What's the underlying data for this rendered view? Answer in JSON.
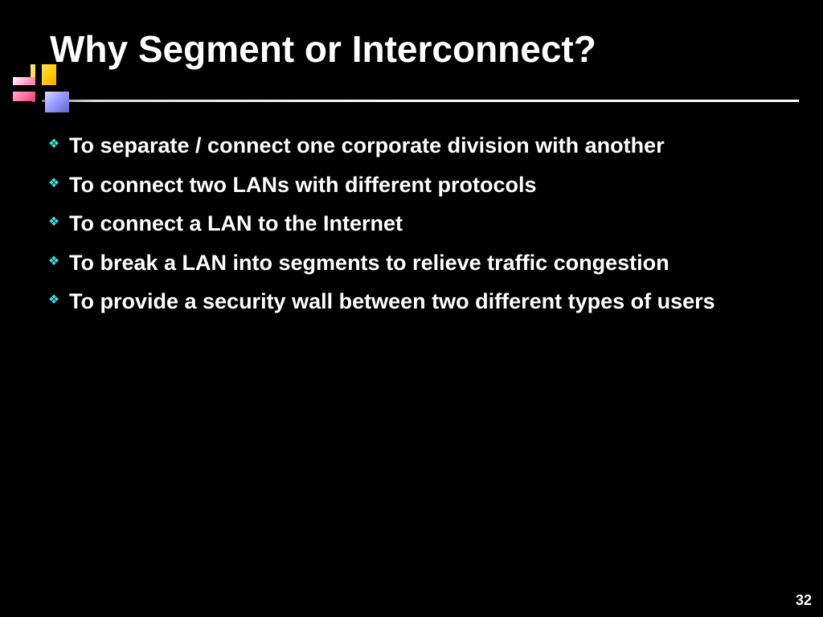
{
  "colors": {
    "background": "#000000",
    "text": "#ffffff",
    "bullet": "#33e6e6"
  },
  "typography": {
    "title_fontsize": 46,
    "body_fontsize": 27,
    "pagenum_fontsize": 18
  },
  "title": "Why Segment or Interconnect?",
  "bullets": [
    "To separate / connect one corporate division with another",
    "To connect two LANs with different protocols",
    "To connect a LAN to the Internet",
    "To break a LAN into segments to relieve traffic congestion",
    "To provide a security wall between two different types of users"
  ],
  "page_number": "32",
  "bullet_glyph": "❖"
}
